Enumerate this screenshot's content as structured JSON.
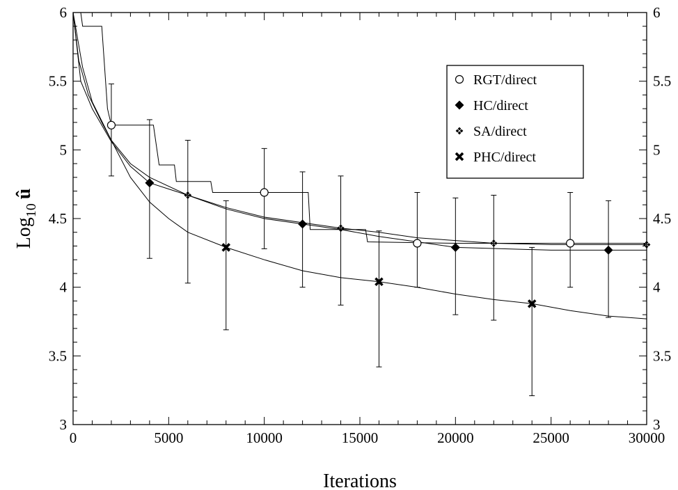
{
  "chart_data": {
    "type": "line",
    "xlabel": "Iterations",
    "ylabel": {
      "base": "Log",
      "sub": "10",
      "var": "û"
    },
    "xlim": [
      0,
      30000
    ],
    "ylim": [
      3,
      6
    ],
    "x_ticks": [
      0,
      5000,
      10000,
      15000,
      20000,
      25000,
      30000
    ],
    "y_ticks": [
      3,
      3.5,
      4,
      4.5,
      5,
      5.5,
      6
    ],
    "grid": false,
    "legend_position": "top-right",
    "series": [
      {
        "name": "RGT/direct",
        "marker": "open-circle",
        "line": [
          [
            0,
            6
          ],
          [
            400,
            6
          ],
          [
            500,
            5.9
          ],
          [
            1500,
            5.9
          ],
          [
            1800,
            5.3
          ],
          [
            2000,
            5.18
          ],
          [
            4200,
            5.18
          ],
          [
            4500,
            4.89
          ],
          [
            5300,
            4.89
          ],
          [
            5400,
            4.77
          ],
          [
            7200,
            4.77
          ],
          [
            7300,
            4.69
          ],
          [
            12300,
            4.69
          ],
          [
            12400,
            4.42
          ],
          [
            15300,
            4.42
          ],
          [
            15400,
            4.33
          ],
          [
            20000,
            4.32
          ],
          [
            30000,
            4.32
          ]
        ],
        "points": [
          {
            "x": 2000,
            "y": 5.18,
            "lo": 4.81,
            "hi": 5.48
          },
          {
            "x": 10000,
            "y": 4.69,
            "lo": 4.28,
            "hi": 5.01
          },
          {
            "x": 18000,
            "y": 4.32,
            "lo": 4.0,
            "hi": 4.69
          },
          {
            "x": 26000,
            "y": 4.32,
            "lo": 4.0,
            "hi": 4.69
          }
        ]
      },
      {
        "name": "HC/direct",
        "marker": "filled-diamond",
        "line": [
          [
            0,
            6
          ],
          [
            400,
            5.5
          ],
          [
            1000,
            5.3
          ],
          [
            2000,
            5.06
          ],
          [
            3000,
            4.88
          ],
          [
            4000,
            4.76
          ],
          [
            6000,
            4.67
          ],
          [
            8000,
            4.57
          ],
          [
            10000,
            4.5
          ],
          [
            12000,
            4.46
          ],
          [
            14000,
            4.42
          ],
          [
            16000,
            4.37
          ],
          [
            18000,
            4.33
          ],
          [
            20000,
            4.29
          ],
          [
            25000,
            4.27
          ],
          [
            30000,
            4.27
          ]
        ],
        "points": [
          {
            "x": 4000,
            "y": 4.76,
            "lo": 4.21,
            "hi": 5.22
          },
          {
            "x": 12000,
            "y": 4.46,
            "lo": 4.0,
            "hi": 4.84
          },
          {
            "x": 20000,
            "y": 4.29,
            "lo": 3.8,
            "hi": 4.65
          },
          {
            "x": 28000,
            "y": 4.27,
            "lo": 3.78,
            "hi": 4.63
          }
        ]
      },
      {
        "name": "SA/direct",
        "marker": "small-diamond",
        "line": [
          [
            0,
            6
          ],
          [
            500,
            5.6
          ],
          [
            1000,
            5.35
          ],
          [
            2000,
            5.07
          ],
          [
            3000,
            4.9
          ],
          [
            4000,
            4.8
          ],
          [
            6000,
            4.67
          ],
          [
            8000,
            4.58
          ],
          [
            10000,
            4.51
          ],
          [
            12000,
            4.47
          ],
          [
            14000,
            4.43
          ],
          [
            16000,
            4.4
          ],
          [
            18000,
            4.36
          ],
          [
            20000,
            4.34
          ],
          [
            22000,
            4.32
          ],
          [
            25000,
            4.31
          ],
          [
            30000,
            4.31
          ]
        ],
        "points": [
          {
            "x": 6000,
            "y": 4.67,
            "lo": 4.03,
            "hi": 5.07
          },
          {
            "x": 14000,
            "y": 4.43,
            "lo": 3.87,
            "hi": 4.81
          },
          {
            "x": 22000,
            "y": 4.32,
            "lo": 3.76,
            "hi": 4.67
          },
          {
            "x": 30000,
            "y": 4.31,
            "lo": 4.31,
            "hi": 4.31
          }
        ]
      },
      {
        "name": "PHC/direct",
        "marker": "x-cross",
        "line": [
          [
            0,
            6
          ],
          [
            300,
            5.65
          ],
          [
            800,
            5.4
          ],
          [
            1500,
            5.2
          ],
          [
            2000,
            5.07
          ],
          [
            3000,
            4.8
          ],
          [
            4000,
            4.62
          ],
          [
            5000,
            4.5
          ],
          [
            6000,
            4.4
          ],
          [
            8000,
            4.29
          ],
          [
            10000,
            4.2
          ],
          [
            12000,
            4.12
          ],
          [
            14000,
            4.07
          ],
          [
            16000,
            4.04
          ],
          [
            18000,
            4.0
          ],
          [
            20000,
            3.95
          ],
          [
            22000,
            3.91
          ],
          [
            24000,
            3.88
          ],
          [
            26000,
            3.83
          ],
          [
            28000,
            3.79
          ],
          [
            30000,
            3.77
          ]
        ],
        "points": [
          {
            "x": 8000,
            "y": 4.29,
            "lo": 3.69,
            "hi": 4.63
          },
          {
            "x": 16000,
            "y": 4.04,
            "lo": 3.42,
            "hi": 4.41
          },
          {
            "x": 24000,
            "y": 3.88,
            "lo": 3.21,
            "hi": 4.29
          }
        ]
      }
    ]
  }
}
